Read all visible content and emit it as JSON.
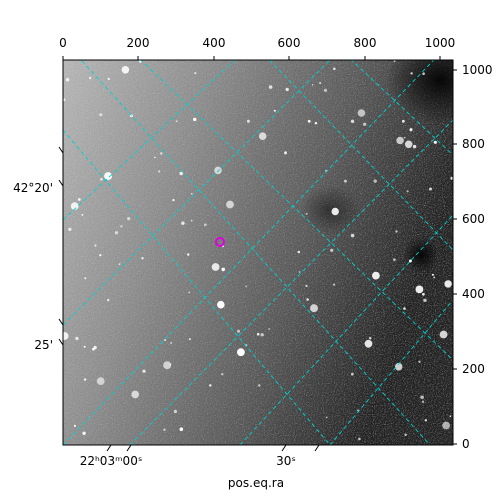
{
  "figure": {
    "x_axis_label": "pos.eq.ra",
    "pixel_axes": {
      "x_ticks": [
        "0",
        "200",
        "400",
        "600",
        "800",
        "1000"
      ],
      "y_ticks": [
        "0",
        "200",
        "400",
        "600",
        "800",
        "1000"
      ]
    },
    "world_axes": {
      "ra_ticks": [
        "22ʰ03ᵐ00ˢ",
        "30ˢ"
      ],
      "dec_ticks": [
        "42°20'",
        "25'"
      ]
    },
    "image": {
      "colormap": "grayscale",
      "grid_color": "#00d0d0",
      "marker_color": "#e000e0"
    }
  }
}
